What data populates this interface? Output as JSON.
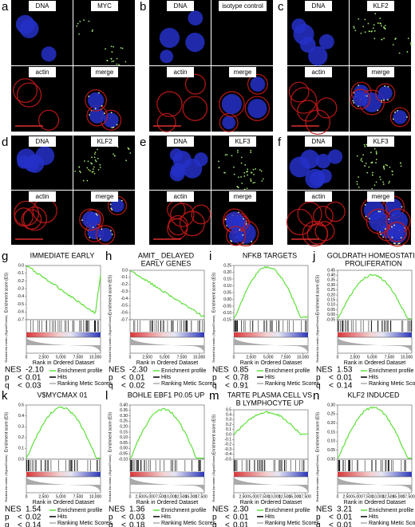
{
  "microscopy": [
    {
      "letter": "a",
      "labels": [
        "DNA",
        "MYC",
        "actin",
        "merge"
      ]
    },
    {
      "letter": "b",
      "labels": [
        "DNA",
        "isotype control",
        "actin",
        "merge"
      ]
    },
    {
      "letter": "c",
      "labels": [
        "DNA",
        "KLF2",
        "actin",
        "merge"
      ]
    },
    {
      "letter": "d",
      "labels": [
        "DNA",
        "KLF2",
        "actin",
        "merge"
      ]
    },
    {
      "letter": "e",
      "labels": [
        "DNA",
        "KLF3",
        "actin",
        "merge"
      ]
    },
    {
      "letter": "f",
      "labels": [
        "DNA",
        "KLF3",
        "actin",
        "merge"
      ]
    }
  ],
  "gsea_common": {
    "y_label": "Enrichment score (ES)",
    "rank_label": "Ranked list metric (Signal2Noise)",
    "x_label": "Rank in Ordered Dataset",
    "nes_label": "NES",
    "p_label": "p",
    "q_label": "q",
    "lt": "<",
    "legend": [
      "Enrichment profile",
      "Hits",
      "Ranking Metic Scores"
    ]
  },
  "gsea": [
    {
      "letter": "g",
      "title": [
        "IMMEDIATE EARLY"
      ],
      "nes": "-2.10",
      "p": "0.01",
      "q": "0.03",
      "yticks": [
        "0.0",
        "-0.1",
        "-0.2",
        "-0.3",
        "-0.4",
        "-0.5",
        "-0.6",
        "-0.7"
      ],
      "xticks": [
        "0",
        "2,500",
        "5,000",
        "7,500",
        "10,000"
      ]
    },
    {
      "letter": "h",
      "title": [
        "AMIT_ DELAYED",
        "EARLY GENES"
      ],
      "nes": "-2.30",
      "p": "0.01",
      "q": "0.02",
      "yticks": [
        "0.0",
        "-0.1",
        "-0.2",
        "-0.3",
        "-0.4",
        "-0.5",
        "-0.6",
        "-0.7"
      ],
      "xticks": [
        "0",
        "2,500",
        "5,000",
        "7,500",
        "10,000"
      ]
    },
    {
      "letter": "i",
      "title": [
        "NFKB TARGETS"
      ],
      "nes": "0.85",
      "p": "0.78",
      "q": "0.91",
      "yticks": [
        "0.25",
        "0.20",
        "0.15",
        "0.10",
        "0.05",
        "0.00",
        "-0.05",
        "-0.10",
        "-0.15"
      ],
      "xticks": [
        "0",
        "2,500",
        "5,000",
        "7,500",
        "10,000"
      ]
    },
    {
      "letter": "j",
      "title": [
        "GOLDRATH HOMEOSTATIC",
        "PROLIFERATION"
      ],
      "nes": "1.53",
      "p": "0.01",
      "q": "0.14",
      "yticks": [
        "0.45",
        "0.40",
        "0.35",
        "0.30",
        "0.25",
        "0.20",
        "0.15",
        "0.10",
        "0.05",
        "0.00",
        "-0.05"
      ],
      "xticks": [
        "0",
        "2,500",
        "5,000",
        "7,500",
        "10,000"
      ]
    },
    {
      "letter": "k",
      "title": [
        "V$MYCMAX 01"
      ],
      "nes": "1.54",
      "p": "0.02",
      "q": "0.14",
      "yticks": [
        "0.5",
        "0.4",
        "0.3",
        "0.2",
        "0.1",
        "0.0"
      ],
      "xticks": [
        "0",
        "2,500",
        "5,000",
        "7,500",
        "10,000"
      ]
    },
    {
      "letter": "l",
      "title": [
        "BOHLE EBF1 P0.05 UP"
      ],
      "nes": "1.36",
      "p": "0.03",
      "q": "0.18",
      "yticks": [
        "0.40",
        "0.35",
        "0.30",
        "0.25",
        "0.20",
        "0.15",
        "0.10",
        "0.05",
        "0.00",
        "-0.05",
        "-0.10"
      ],
      "xticks": [
        "0",
        "2,500",
        "5,000",
        "7,500",
        "10,000",
        "12,500",
        "15,000",
        "17,500"
      ]
    },
    {
      "letter": "m",
      "title": [
        "TARTE PLASMA CELL VS",
        "B LYMPHOCYTE UP"
      ],
      "nes": "2.30",
      "p": "0.01",
      "q": "0.01",
      "yticks": [
        "0.5",
        "0.4",
        "0.3",
        "0.2",
        "0.1",
        "0.0",
        "-0.1",
        "-0.2",
        "-0.3",
        "-0.4",
        "-0.5"
      ],
      "xticks": [
        "0",
        "2,500",
        "5,000",
        "7,500",
        "10,000",
        "12,500",
        "15,000",
        "17,500"
      ]
    },
    {
      "letter": "n",
      "title": [
        "KLF2 INDUCED"
      ],
      "nes": "3.21",
      "p": "0.01",
      "q": "0.01",
      "yticks": [
        "0.30",
        "0.25",
        "0.20",
        "0.15",
        "0.10",
        "0.05",
        "0.00"
      ],
      "xticks": [
        "0",
        "2,500",
        "5,000",
        "7,500",
        "10,000",
        "12,500",
        "15,000",
        "17,500"
      ]
    }
  ]
}
